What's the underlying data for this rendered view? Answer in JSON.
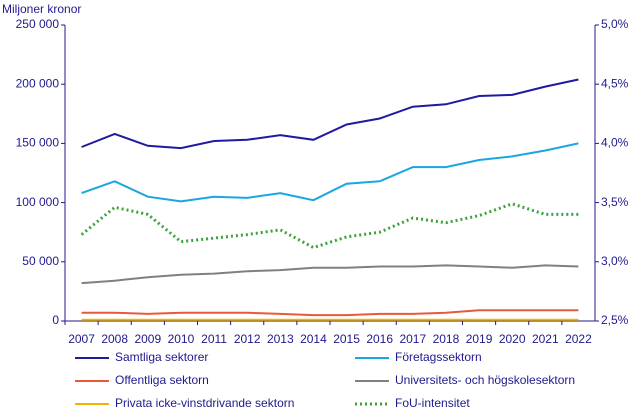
{
  "chart_data": {
    "type": "line",
    "y_label": "Miljoner kronor",
    "categories": [
      "2007",
      "2008",
      "2009",
      "2010",
      "2011",
      "2012",
      "2013",
      "2014",
      "2015",
      "2016",
      "2017",
      "2018",
      "2019",
      "2020",
      "2021",
      "2022"
    ],
    "ylim": [
      0,
      250000
    ],
    "yticks": [
      {
        "value": 0,
        "label": "0"
      },
      {
        "value": 50000,
        "label": "50 000"
      },
      {
        "value": 100000,
        "label": "100 000"
      },
      {
        "value": 150000,
        "label": "150 000"
      },
      {
        "value": 200000,
        "label": "200 000"
      },
      {
        "value": 250000,
        "label": "250 000"
      }
    ],
    "y2lim": [
      2.5,
      5.0
    ],
    "y2ticks": [
      {
        "value": 2.5,
        "label": "2,5%"
      },
      {
        "value": 3.0,
        "label": "3,0%"
      },
      {
        "value": 3.5,
        "label": "3,5%"
      },
      {
        "value": 4.0,
        "label": "4,0%"
      },
      {
        "value": 4.5,
        "label": "4,5%"
      },
      {
        "value": 5.0,
        "label": "5,0%"
      }
    ],
    "series": [
      {
        "name": "Samtliga sektorer",
        "color": "#1f1aa0",
        "values": [
          147000,
          158000,
          148000,
          146000,
          152000,
          153000,
          157000,
          153000,
          166000,
          171000,
          181000,
          183000,
          190000,
          191000,
          198000,
          204000
        ]
      },
      {
        "name": "Företagssektorn",
        "color": "#1aa6e0",
        "values": [
          108000,
          118000,
          105000,
          101000,
          105000,
          104000,
          108000,
          102000,
          116000,
          118000,
          130000,
          130000,
          136000,
          139000,
          144000,
          150000
        ]
      },
      {
        "name": "Offentliga sektorn",
        "color": "#e8593c",
        "values": [
          7000,
          7000,
          6000,
          7000,
          7000,
          7000,
          6000,
          5000,
          5000,
          6000,
          6000,
          7000,
          9000,
          9000,
          9000,
          9000
        ]
      },
      {
        "name": "Universitets- och högskolesektorn",
        "color": "#808080",
        "values": [
          32000,
          34000,
          37000,
          39000,
          40000,
          42000,
          43000,
          45000,
          45000,
          46000,
          46000,
          47000,
          46000,
          45000,
          47000,
          46000
        ]
      },
      {
        "name": "Privata icke-vinstdrivande sektorn",
        "color": "#f2b400",
        "values": [
          1000,
          1000,
          1000,
          1000,
          1000,
          1000,
          1000,
          1000,
          1000,
          1000,
          1000,
          1000,
          1000,
          1000,
          1000,
          1000
        ]
      },
      {
        "name": "FoU-intensitet",
        "color": "#3aa33a",
        "axis": "y2",
        "dashed": true,
        "values": [
          3.23,
          3.46,
          3.4,
          3.17,
          3.2,
          3.23,
          3.27,
          3.12,
          3.21,
          3.25,
          3.37,
          3.33,
          3.39,
          3.49,
          3.4,
          3.4
        ]
      }
    ]
  }
}
